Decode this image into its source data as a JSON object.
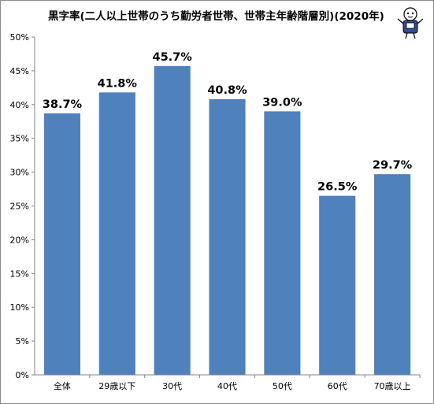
{
  "chart_data": {
    "type": "bar",
    "title": "黒字率(二人以上世帯のうち勤労者世帯、世帯主年齢階層別)(2020年)",
    "categories": [
      "全体",
      "29歳以下",
      "30代",
      "40代",
      "50代",
      "60代",
      "70歳以上"
    ],
    "values": [
      38.7,
      41.8,
      45.7,
      40.8,
      39.0,
      26.5,
      29.7
    ],
    "data_labels": [
      "38.7%",
      "41.8%",
      "45.7%",
      "40.8%",
      "39.0%",
      "26.5%",
      "29.7%"
    ],
    "y_ticks": [
      "0%",
      "5%",
      "10%",
      "15%",
      "20%",
      "25%",
      "30%",
      "35%",
      "40%",
      "45%",
      "50%"
    ],
    "ylim": [
      0,
      50
    ],
    "xlabel": "",
    "ylabel": "",
    "grid": false,
    "legend": "none",
    "bar_color": "#4f81bd"
  }
}
